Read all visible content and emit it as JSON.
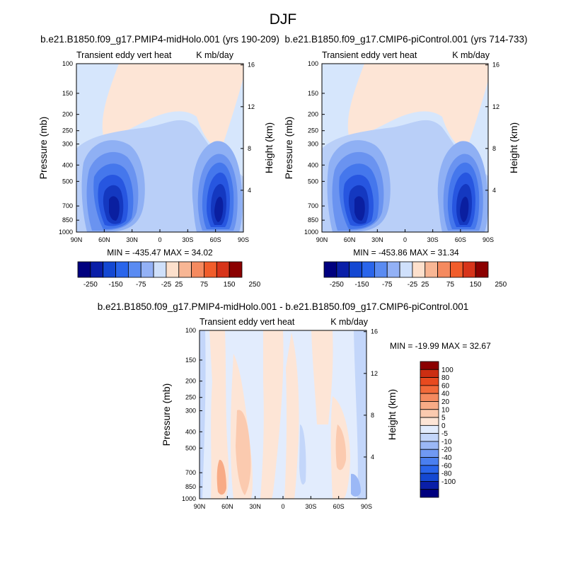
{
  "page": {
    "title": "DJF"
  },
  "colors": {
    "palette11": [
      "#00007f",
      "#0a1fa8",
      "#1448d2",
      "#2a65eb",
      "#5a8bf2",
      "#93b1f6",
      "#cfe0fb",
      "#fde0cc",
      "#f8b694",
      "#f58a5f",
      "#f15d2b",
      "#d7341a",
      "#8b0000"
    ],
    "diff_palette": [
      "#00007f",
      "#0a1fa8",
      "#1448d2",
      "#2a65eb",
      "#4a7ff0",
      "#7099f3",
      "#9bb8f6",
      "#c3d6fa",
      "#e2ecfd",
      "#fde5d6",
      "#fbcaaf",
      "#f8ab86",
      "#f58a5f",
      "#f26a3a",
      "#e84a1f",
      "#cc2e12",
      "#8b0000"
    ]
  },
  "chart_data": [
    {
      "type": "contour",
      "panel": "left",
      "title": "b.e21.B1850.f09_g17.PMIP4-midHolo.001 (yrs 190-209)",
      "left_string": "Transient eddy vert heat",
      "right_string": "K mb/day",
      "ylabel": "Pressure (mb)",
      "y2label": "Height (km)",
      "x_ticks": [
        "90N",
        "60N",
        "30N",
        "0",
        "30S",
        "60S",
        "90S"
      ],
      "y_ticks": [
        "100",
        "150",
        "200",
        "250",
        "300",
        "400",
        "500",
        "700",
        "850",
        "1000"
      ],
      "y2_ticks": [
        "16",
        "12",
        "8",
        "4"
      ],
      "min_max": "MIN = -435.47  MAX =  34.02",
      "min": -435.47,
      "max": 34.02
    },
    {
      "type": "contour",
      "panel": "right",
      "title": "b.e21.B1850.f09_g17.CMIP6-piControl.001 (yrs 714-733)",
      "left_string": "Transient eddy vert heat",
      "right_string": "K mb/day",
      "ylabel": "Pressure (mb)",
      "y2label": "Height (km)",
      "x_ticks": [
        "90N",
        "60N",
        "30N",
        "0",
        "30S",
        "60S",
        "90S"
      ],
      "y_ticks": [
        "100",
        "150",
        "200",
        "250",
        "300",
        "400",
        "500",
        "700",
        "850",
        "1000"
      ],
      "y2_ticks": [
        "16",
        "12",
        "8",
        "4"
      ],
      "min_max": "MIN = -453.86  MAX =  31.34",
      "min": -453.86,
      "max": 31.34
    },
    {
      "type": "contour",
      "panel": "difference",
      "title": "b.e21.B1850.f09_g17.PMIP4-midHolo.001 - b.e21.B1850.f09_g17.CMIP6-piControl.001",
      "left_string": "Transient eddy vert heat",
      "right_string": "K mb/day",
      "ylabel": "Pressure (mb)",
      "y2label": "Height (km)",
      "x_ticks": [
        "90N",
        "60N",
        "30N",
        "0",
        "30S",
        "60S",
        "90S"
      ],
      "y_ticks": [
        "100",
        "150",
        "200",
        "250",
        "300",
        "400",
        "500",
        "700",
        "850",
        "1000"
      ],
      "y2_ticks": [
        "16",
        "12",
        "8",
        "4"
      ],
      "min_max": "MIN = -19.99  MAX =  32.67",
      "min": -19.99,
      "max": 32.67
    }
  ],
  "colorbar_top": {
    "labels": [
      "-250",
      "-150",
      "-75",
      "-25",
      "25",
      "75",
      "150",
      "250"
    ]
  },
  "colorbar_diff": {
    "labels": [
      "100",
      "80",
      "60",
      "40",
      "20",
      "10",
      "5",
      "0",
      "-5",
      "-10",
      "-20",
      "-40",
      "-60",
      "-80",
      "-100"
    ]
  }
}
